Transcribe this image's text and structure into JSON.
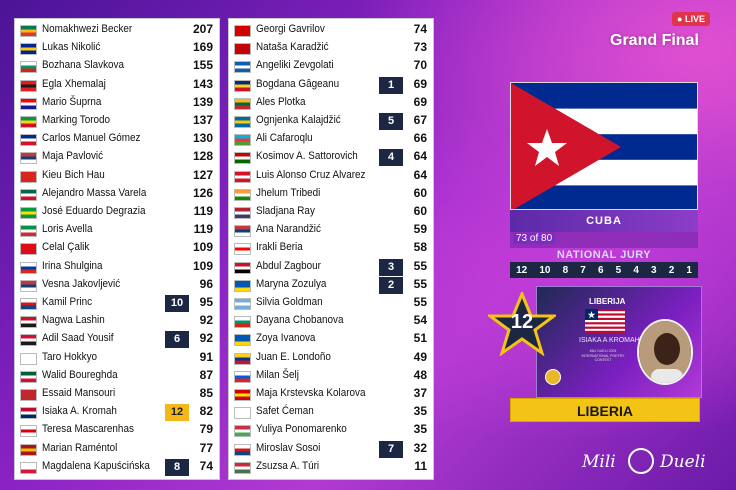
{
  "header": {
    "live_label": "LIVE",
    "event_title": "Grand Final"
  },
  "left_column": [
    {
      "name": "Nomakhwezi Becker",
      "points": "207",
      "badge": "",
      "flag": [
        "#007a4d",
        "#ffb612",
        "#de3831"
      ]
    },
    {
      "name": "Lukas Nikolić",
      "points": "169",
      "badge": "",
      "flag": [
        "#002395",
        "#fecb00",
        "#002395"
      ]
    },
    {
      "name": "Bozhana Slavkova",
      "points": "155",
      "badge": "",
      "flag": [
        "#ffffff",
        "#00966e",
        "#d62612"
      ]
    },
    {
      "name": "Egla Xhemalaj",
      "points": "143",
      "badge": "",
      "flag": [
        "#e41e20",
        "#1a1a1a",
        "#e41e20"
      ]
    },
    {
      "name": "Mario Šuprna",
      "points": "139",
      "badge": "",
      "flag": [
        "#ff0000",
        "#ffffff",
        "#171796"
      ]
    },
    {
      "name": "Marking Torodo",
      "points": "137",
      "badge": "",
      "flag": [
        "#009a44",
        "#fcd116",
        "#ce1126"
      ]
    },
    {
      "name": "Carlos Manuel Gómez",
      "points": "130",
      "badge": "",
      "flag": [
        "#002a8f",
        "#ffffff",
        "#cf142b"
      ]
    },
    {
      "name": "Maja Pavlović",
      "points": "128",
      "badge": "",
      "flag": [
        "#c6363c",
        "#0c4076",
        "#ffffff"
      ]
    },
    {
      "name": "Kieu Bich Hau",
      "points": "127",
      "badge": "",
      "flag": [
        "#da251d",
        "#da251d",
        "#da251d"
      ]
    },
    {
      "name": "Alejandro Massa Varela",
      "points": "126",
      "badge": "",
      "flag": [
        "#006847",
        "#ffffff",
        "#ce1126"
      ]
    },
    {
      "name": "José Eduardo Degrazia",
      "points": "119",
      "badge": "",
      "flag": [
        "#009c3b",
        "#ffdf00",
        "#009c3b"
      ]
    },
    {
      "name": "Loris Avella",
      "points": "119",
      "badge": "",
      "flag": [
        "#009246",
        "#ffffff",
        "#ce2b37"
      ]
    },
    {
      "name": "Celal Çalik",
      "points": "109",
      "badge": "",
      "flag": [
        "#e30a17",
        "#e30a17",
        "#e30a17"
      ]
    },
    {
      "name": "Irina Shulgina",
      "points": "109",
      "badge": "",
      "flag": [
        "#ffffff",
        "#0039a6",
        "#d52b1e"
      ]
    },
    {
      "name": "Vesna Jakovljević",
      "points": "96",
      "badge": "",
      "flag": [
        "#c6363c",
        "#0c4076",
        "#ffffff"
      ]
    },
    {
      "name": "Kamil Princ",
      "points": "95",
      "badge": "10",
      "flag": [
        "#ffffff",
        "#d7141a",
        "#11457e"
      ]
    },
    {
      "name": "Nagwa Lashin",
      "points": "92",
      "badge": "",
      "flag": [
        "#ce1126",
        "#ffffff",
        "#1a1a1a"
      ]
    },
    {
      "name": "Adil Saad Yousif",
      "points": "92",
      "badge": "6",
      "flag": [
        "#d21034",
        "#ffffff",
        "#1a1a1a"
      ]
    },
    {
      "name": "Taro Hokkyo",
      "points": "91",
      "badge": "",
      "flag": [
        "#ffffff",
        "#ffffff",
        "#ffffff"
      ]
    },
    {
      "name": "Walid Boureghda",
      "points": "87",
      "badge": "",
      "flag": [
        "#006233",
        "#ffffff",
        "#d21034"
      ]
    },
    {
      "name": "Essaid Mansouri",
      "points": "85",
      "badge": "",
      "flag": [
        "#c1272d",
        "#c1272d",
        "#c1272d"
      ]
    },
    {
      "name": "Isiaka A. Kromah",
      "points": "82",
      "badge": "12",
      "flag": [
        "#bf0a30",
        "#ffffff",
        "#002868"
      ]
    },
    {
      "name": "Teresa Mascarenhas",
      "points": "79",
      "badge": "",
      "flag": [
        "#ffffff",
        "#da000c",
        "#ffffff"
      ]
    },
    {
      "name": "Marian Raméntol",
      "points": "77",
      "badge": "",
      "flag": [
        "#aa151b",
        "#f1bf00",
        "#aa151b"
      ]
    },
    {
      "name": "Magdalena Kapuścińska",
      "points": "74",
      "badge": "8",
      "flag": [
        "#ffffff",
        "#ffffff",
        "#dc143c"
      ]
    }
  ],
  "right_column": [
    {
      "name": "Georgi Gavrilov",
      "points": "74",
      "badge": "",
      "flag": [
        "#d20000",
        "#d20000",
        "#d20000"
      ]
    },
    {
      "name": "Nataša Karadžić",
      "points": "73",
      "badge": "",
      "flag": [
        "#c40308",
        "#c40308",
        "#c40308"
      ]
    },
    {
      "name": "Angeliki Zevgolati",
      "points": "70",
      "badge": "",
      "flag": [
        "#0d5eaf",
        "#ffffff",
        "#0d5eaf"
      ]
    },
    {
      "name": "Bogdana Gâgeanu",
      "points": "69",
      "badge": "1",
      "flag": [
        "#002b7f",
        "#fcd116",
        "#ce1126"
      ]
    },
    {
      "name": "Ales Plotka",
      "points": "69",
      "badge": "",
      "flag": [
        "#fdb913",
        "#006a44",
        "#c1272d"
      ]
    },
    {
      "name": "Ognjenka Kalajdžić",
      "points": "67",
      "badge": "5",
      "flag": [
        "#006aa7",
        "#fecc00",
        "#006aa7"
      ]
    },
    {
      "name": "Ali Cafaroqlu",
      "points": "66",
      "badge": "",
      "flag": [
        "#00b5e2",
        "#ef3340",
        "#509e2f"
      ]
    },
    {
      "name": "Kosimov A. Sattorovich",
      "points": "64",
      "badge": "4",
      "flag": [
        "#cc0000",
        "#ffffff",
        "#006600"
      ]
    },
    {
      "name": "Luis Alonso Cruz Alvarez",
      "points": "64",
      "badge": "",
      "flag": [
        "#d91023",
        "#ffffff",
        "#d91023"
      ]
    },
    {
      "name": "Jhelum Tribedi",
      "points": "60",
      "badge": "",
      "flag": [
        "#ff9933",
        "#ffffff",
        "#138808"
      ]
    },
    {
      "name": "Sladjana Ray",
      "points": "60",
      "badge": "",
      "flag": [
        "#b22234",
        "#ffffff",
        "#3c3b6e"
      ]
    },
    {
      "name": "Ana Narandžić",
      "points": "59",
      "badge": "",
      "flag": [
        "#c6363c",
        "#0c4076",
        "#ffffff"
      ]
    },
    {
      "name": "Irakli Beria",
      "points": "58",
      "badge": "",
      "flag": [
        "#ffffff",
        "#ff0000",
        "#ffffff"
      ]
    },
    {
      "name": "Abdul Zagbour",
      "points": "55",
      "badge": "3",
      "flag": [
        "#ce1126",
        "#ffffff",
        "#000000"
      ]
    },
    {
      "name": "Maryna Zozulya",
      "points": "55",
      "badge": "2",
      "flag": [
        "#0057b7",
        "#0057b7",
        "#ffd700"
      ]
    },
    {
      "name": "Silvia Goldman",
      "points": "55",
      "badge": "",
      "flag": [
        "#74acdf",
        "#ffffff",
        "#74acdf"
      ]
    },
    {
      "name": "Dayana Chobanova",
      "points": "54",
      "badge": "",
      "flag": [
        "#ffffff",
        "#00966e",
        "#d62612"
      ]
    },
    {
      "name": "Zoya Ivanova",
      "points": "51",
      "badge": "",
      "flag": [
        "#0057b7",
        "#0057b7",
        "#ffd700"
      ]
    },
    {
      "name": "Juan E. Londoño",
      "points": "49",
      "badge": "",
      "flag": [
        "#fcd116",
        "#003893",
        "#ce1126"
      ]
    },
    {
      "name": "Milan Šelj",
      "points": "48",
      "badge": "",
      "flag": [
        "#ffffff",
        "#005ce5",
        "#ed1c24"
      ]
    },
    {
      "name": "Maja Krstevska Kolarova",
      "points": "37",
      "badge": "",
      "flag": [
        "#d20000",
        "#ffe600",
        "#d20000"
      ]
    },
    {
      "name": "Safet Ćeman",
      "points": "35",
      "badge": "",
      "flag": [
        "#ffffff",
        "#ffffff",
        "#ffffff"
      ]
    },
    {
      "name": "Yuliya Ponomarenko",
      "points": "35",
      "badge": "",
      "flag": [
        "#c8313e",
        "#ffffff",
        "#4aa657"
      ]
    },
    {
      "name": "Miroslav Sosoi",
      "points": "32",
      "badge": "7",
      "flag": [
        "#ffffff",
        "#d7141a",
        "#11457e"
      ]
    },
    {
      "name": "Zsuzsa A. Túri",
      "points": "11",
      "badge": "",
      "flag": [
        "#ce2939",
        "#ffffff",
        "#477050"
      ]
    }
  ],
  "voting": {
    "voter_country": "CUBA",
    "vote_counter": "73 of 80",
    "jury_label": "NATIONAL JURY",
    "scale": [
      "12",
      "10",
      "8",
      "7",
      "6",
      "5",
      "4",
      "3",
      "2",
      "1"
    ],
    "awarded_points": "12",
    "card_country": "LIBERIJA",
    "card_person": "ISIAKA A KROMAH",
    "card_caption": "MILI DUELI 2024 INTERNATIONAL POETRY CONTEST",
    "recipient_country": "LIBERIA"
  },
  "colors": {
    "badge_navy": "#1c2743",
    "badge_gold": "#f5b818",
    "plate_yellow": "#f3c316",
    "cuba_blue": "#002a8f",
    "cuba_red": "#cf142b"
  },
  "brand": {
    "left": "Mili",
    "right": "Dueli"
  }
}
